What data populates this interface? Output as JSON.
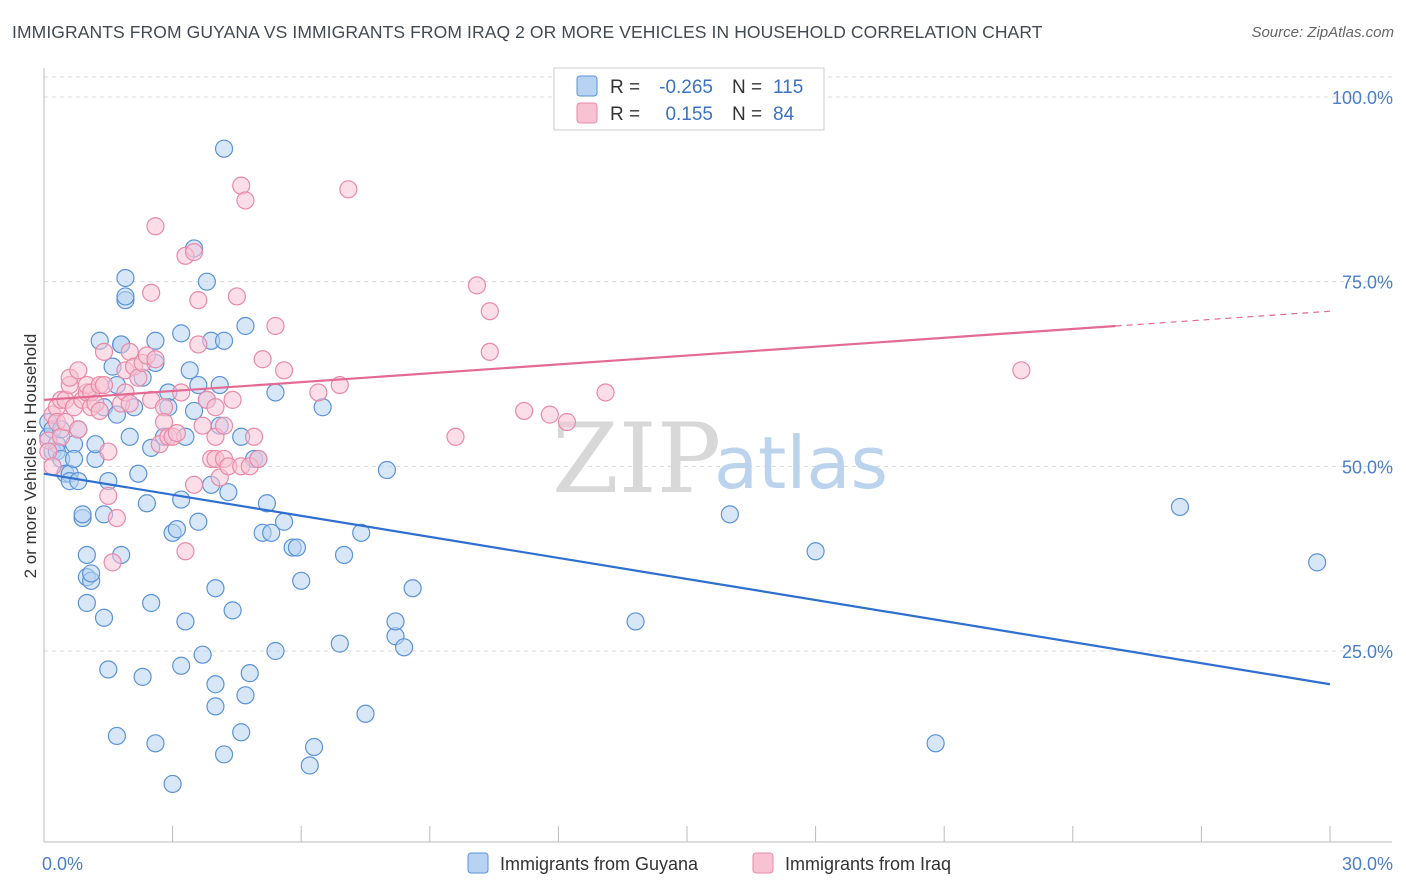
{
  "header": {
    "title": "IMMIGRANTS FROM GUYANA VS IMMIGRANTS FROM IRAQ 2 OR MORE VEHICLES IN HOUSEHOLD CORRELATION CHART",
    "source": "Source: ZipAtlas.com"
  },
  "watermark": {
    "zip": "ZIP",
    "atlas": "atlas"
  },
  "colors": {
    "guyana_fill": "#b8d3f2",
    "guyana_stroke": "#5b93d6",
    "guyana_line": "#2f6fd0",
    "iraq_fill": "#f7c3d3",
    "iraq_stroke": "#e88aa8",
    "iraq_line": "#e36a93",
    "grid": "#d8d8d8",
    "tick_text": "#4a7fc8"
  },
  "legend": {
    "rows": [
      {
        "r_label": "R =",
        "r_value": "-0.265",
        "n_label": "N =",
        "n_value": "115"
      },
      {
        "r_label": "R =",
        "r_value": "0.155",
        "n_label": "N =",
        "n_value": "84"
      }
    ]
  },
  "chart_data": {
    "type": "scatter",
    "xlabel": "",
    "ylabel": "2 or more Vehicles in Household",
    "xlim": [
      0,
      30
    ],
    "ylim": [
      0,
      100
    ],
    "x_tick_labels": [
      "0.0%",
      "30.0%"
    ],
    "y_tick_labels": [
      "100.0%",
      "75.0%",
      "50.0%",
      "25.0%"
    ],
    "y_tick_values": [
      100,
      75,
      50,
      25
    ],
    "grid": true,
    "legend_placement": "top-center",
    "series": [
      {
        "name": "Immigrants from Guyana",
        "r": -0.265,
        "n": 115,
        "trend": {
          "x": [
            0,
            30
          ],
          "y": [
            49,
            20.5
          ],
          "dashed_from": 30
        },
        "points": [
          [
            0.1,
            56
          ],
          [
            0.1,
            54
          ],
          [
            0.2,
            55
          ],
          [
            0.2,
            52
          ],
          [
            0.3,
            53
          ],
          [
            0.3,
            52
          ],
          [
            0.4,
            51
          ],
          [
            0.4,
            55
          ],
          [
            0.5,
            49
          ],
          [
            0.6,
            49
          ],
          [
            0.6,
            48
          ],
          [
            0.7,
            53
          ],
          [
            0.7,
            51
          ],
          [
            0.8,
            55
          ],
          [
            0.8,
            48
          ],
          [
            0.9,
            43
          ],
          [
            0.9,
            43.5
          ],
          [
            1.0,
            38
          ],
          [
            1.0,
            35
          ],
          [
            1.0,
            31.5
          ],
          [
            1.1,
            34.5
          ],
          [
            1.1,
            35.5
          ],
          [
            1.2,
            51
          ],
          [
            1.2,
            53
          ],
          [
            1.3,
            67
          ],
          [
            1.4,
            58
          ],
          [
            1.4,
            43.5
          ],
          [
            1.4,
            29.5
          ],
          [
            1.5,
            48
          ],
          [
            1.5,
            22.5
          ],
          [
            1.6,
            63.5
          ],
          [
            1.7,
            61
          ],
          [
            1.7,
            57
          ],
          [
            1.7,
            13.5
          ],
          [
            1.8,
            38
          ],
          [
            1.8,
            66.5
          ],
          [
            1.9,
            72.5
          ],
          [
            1.9,
            75.5
          ],
          [
            1.9,
            73
          ],
          [
            1.8,
            66.5
          ],
          [
            2.0,
            54
          ],
          [
            2.1,
            58
          ],
          [
            2.2,
            49
          ],
          [
            2.3,
            62
          ],
          [
            2.3,
            21.5
          ],
          [
            2.4,
            45
          ],
          [
            2.5,
            31.5
          ],
          [
            2.5,
            52.5
          ],
          [
            2.6,
            67
          ],
          [
            2.6,
            64
          ],
          [
            2.6,
            12.5
          ],
          [
            2.8,
            54
          ],
          [
            2.9,
            60
          ],
          [
            2.9,
            58
          ],
          [
            3.0,
            41
          ],
          [
            3.0,
            7
          ],
          [
            3.1,
            41.5
          ],
          [
            3.2,
            23
          ],
          [
            3.2,
            45.5
          ],
          [
            3.2,
            68
          ],
          [
            3.3,
            54
          ],
          [
            3.3,
            29
          ],
          [
            3.4,
            63
          ],
          [
            3.5,
            57.5
          ],
          [
            3.5,
            79.5
          ],
          [
            3.6,
            61
          ],
          [
            3.6,
            42.5
          ],
          [
            3.7,
            24.5
          ],
          [
            3.8,
            59
          ],
          [
            3.8,
            75
          ],
          [
            3.9,
            67
          ],
          [
            3.9,
            47.5
          ],
          [
            4.0,
            20.5
          ],
          [
            4.0,
            17.5
          ],
          [
            4.0,
            33.5
          ],
          [
            4.1,
            55.5
          ],
          [
            4.1,
            61
          ],
          [
            4.2,
            93
          ],
          [
            4.2,
            67
          ],
          [
            4.2,
            11
          ],
          [
            4.3,
            46.5
          ],
          [
            4.4,
            30.5
          ],
          [
            4.6,
            54
          ],
          [
            4.6,
            14
          ],
          [
            4.7,
            69
          ],
          [
            4.7,
            19
          ],
          [
            4.8,
            22
          ],
          [
            4.9,
            51
          ],
          [
            5.0,
            51
          ],
          [
            5.1,
            41
          ],
          [
            5.2,
            45
          ],
          [
            5.3,
            41
          ],
          [
            5.4,
            25
          ],
          [
            5.4,
            60
          ],
          [
            5.6,
            42.5
          ],
          [
            5.8,
            39
          ],
          [
            5.9,
            39
          ],
          [
            6.0,
            34.5
          ],
          [
            6.2,
            9.5
          ],
          [
            6.3,
            12
          ],
          [
            6.5,
            58
          ],
          [
            6.9,
            26
          ],
          [
            7.0,
            38
          ],
          [
            7.4,
            41
          ],
          [
            7.5,
            16.5
          ],
          [
            8.0,
            49.5
          ],
          [
            8.2,
            27
          ],
          [
            8.2,
            29
          ],
          [
            8.4,
            25.5
          ],
          [
            8.6,
            33.5
          ],
          [
            13.8,
            29
          ],
          [
            16.0,
            43.5
          ],
          [
            18.0,
            38.5
          ],
          [
            20.8,
            12.5
          ],
          [
            26.5,
            44.5
          ],
          [
            29.7,
            37
          ]
        ]
      },
      {
        "name": "Immigrants from Iraq",
        "r": 0.155,
        "n": 84,
        "trend": {
          "x": [
            0,
            25
          ],
          "y": [
            59,
            69
          ],
          "dashed_to": 30,
          "dashed_y": 71
        },
        "points": [
          [
            0.1,
            53.5
          ],
          [
            0.1,
            52
          ],
          [
            0.2,
            50
          ],
          [
            0.2,
            57
          ],
          [
            0.3,
            58
          ],
          [
            0.3,
            56
          ],
          [
            0.4,
            54
          ],
          [
            0.4,
            59
          ],
          [
            0.5,
            56
          ],
          [
            0.5,
            59
          ],
          [
            0.6,
            61
          ],
          [
            0.6,
            62
          ],
          [
            0.7,
            58
          ],
          [
            0.8,
            63
          ],
          [
            0.8,
            55
          ],
          [
            0.9,
            59
          ],
          [
            1.0,
            60
          ],
          [
            1.0,
            61
          ],
          [
            1.1,
            58
          ],
          [
            1.1,
            60
          ],
          [
            1.2,
            58.5
          ],
          [
            1.3,
            57.5
          ],
          [
            1.3,
            61
          ],
          [
            1.4,
            61
          ],
          [
            1.4,
            65.5
          ],
          [
            1.5,
            52
          ],
          [
            1.5,
            46
          ],
          [
            1.6,
            37
          ],
          [
            1.7,
            43
          ],
          [
            1.8,
            58.5
          ],
          [
            1.9,
            63
          ],
          [
            1.9,
            60
          ],
          [
            2.0,
            65.5
          ],
          [
            2.0,
            58.5
          ],
          [
            2.1,
            63.5
          ],
          [
            2.2,
            62
          ],
          [
            2.3,
            64
          ],
          [
            2.4,
            65
          ],
          [
            2.5,
            59
          ],
          [
            2.5,
            73.5
          ],
          [
            2.6,
            82.5
          ],
          [
            2.6,
            64.5
          ],
          [
            2.7,
            53
          ],
          [
            2.8,
            58
          ],
          [
            2.8,
            56
          ],
          [
            2.9,
            54
          ],
          [
            3.0,
            54
          ],
          [
            3.1,
            54.5
          ],
          [
            3.2,
            60
          ],
          [
            3.3,
            38.5
          ],
          [
            3.3,
            78.5
          ],
          [
            3.5,
            79
          ],
          [
            3.5,
            47.5
          ],
          [
            3.6,
            72.5
          ],
          [
            3.6,
            66.5
          ],
          [
            3.7,
            55.5
          ],
          [
            3.8,
            59
          ],
          [
            3.9,
            51
          ],
          [
            4.0,
            58
          ],
          [
            4.0,
            54
          ],
          [
            4.0,
            51
          ],
          [
            4.1,
            48.5
          ],
          [
            4.2,
            51
          ],
          [
            4.2,
            55.5
          ],
          [
            4.3,
            50
          ],
          [
            4.4,
            59
          ],
          [
            4.5,
            73
          ],
          [
            4.6,
            50
          ],
          [
            4.6,
            88
          ],
          [
            4.7,
            86
          ],
          [
            4.8,
            50
          ],
          [
            4.9,
            54
          ],
          [
            5.0,
            51
          ],
          [
            5.1,
            64.5
          ],
          [
            5.4,
            69
          ],
          [
            5.6,
            63
          ],
          [
            6.4,
            60
          ],
          [
            6.9,
            61
          ],
          [
            7.1,
            87.5
          ],
          [
            9.6,
            54
          ],
          [
            10.1,
            74.5
          ],
          [
            10.4,
            71
          ],
          [
            10.4,
            65.5
          ],
          [
            11.2,
            57.5
          ],
          [
            11.8,
            57
          ],
          [
            12.2,
            56
          ],
          [
            13.1,
            60
          ],
          [
            22.8,
            63
          ]
        ]
      }
    ]
  },
  "bottom_legend": {
    "items": [
      {
        "label": "Immigrants from Guyana"
      },
      {
        "label": "Immigrants from Iraq"
      }
    ]
  }
}
